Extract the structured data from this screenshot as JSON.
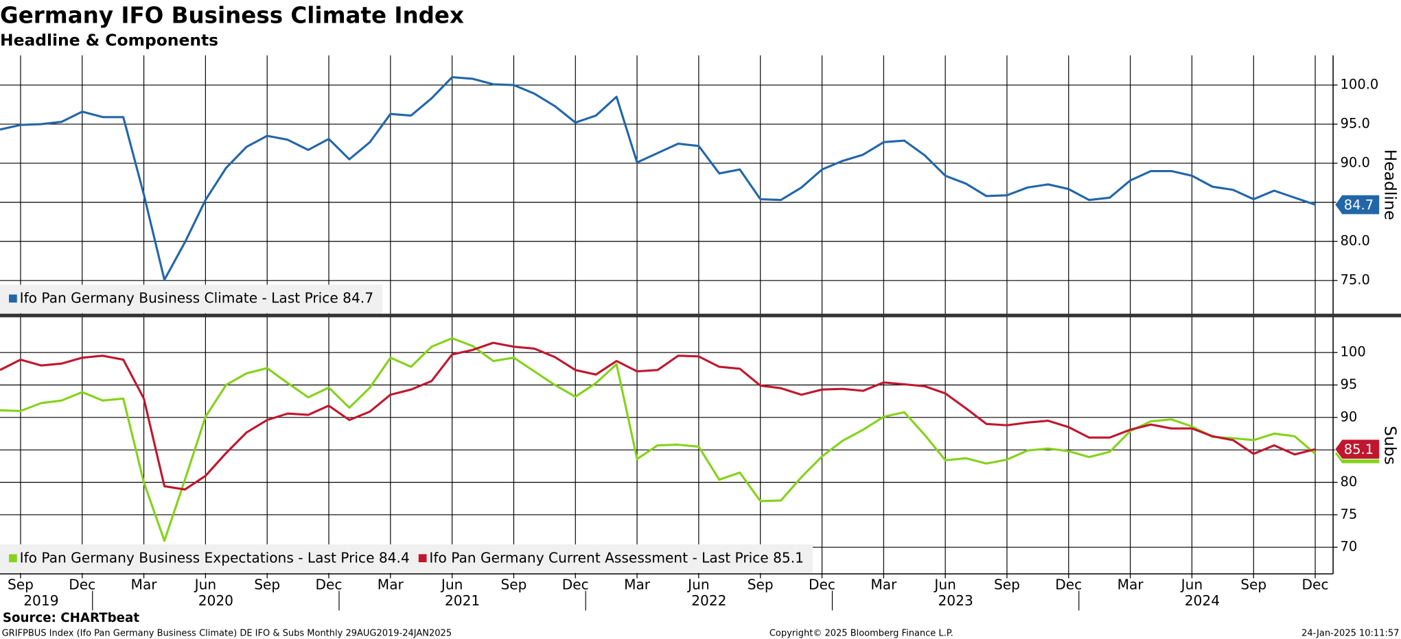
{
  "title": "Germany IFO Business Climate Index",
  "subtitle": "Headline & Components",
  "source": "Source: CHARTbeat",
  "footer_left": "GRIFPBUS Index (Ifo Pan Germany Business Climate) DE IFO & Subs  Monthly 29AUG2019-24JAN2025",
  "footer_center": "Copyright© 2025 Bloomberg Finance L.P.",
  "footer_right": "24-Jan-2025 10:11:57",
  "chart_data": [
    {
      "type": "line",
      "axis_label": "Headline",
      "grid": true,
      "axis_side": "right",
      "x": [
        "2019-08",
        "2019-09",
        "2019-10",
        "2019-11",
        "2019-12",
        "2020-01",
        "2020-02",
        "2020-03",
        "2020-04",
        "2020-05",
        "2020-06",
        "2020-07",
        "2020-08",
        "2020-09",
        "2020-10",
        "2020-11",
        "2020-12",
        "2021-01",
        "2021-02",
        "2021-03",
        "2021-04",
        "2021-05",
        "2021-06",
        "2021-07",
        "2021-08",
        "2021-09",
        "2021-10",
        "2021-11",
        "2021-12",
        "2022-01",
        "2022-02",
        "2022-03",
        "2022-04",
        "2022-05",
        "2022-06",
        "2022-07",
        "2022-08",
        "2022-09",
        "2022-10",
        "2022-11",
        "2022-12",
        "2023-01",
        "2023-02",
        "2023-03",
        "2023-04",
        "2023-05",
        "2023-06",
        "2023-07",
        "2023-08",
        "2023-09",
        "2023-10",
        "2023-11",
        "2023-12",
        "2024-01",
        "2024-02",
        "2024-03",
        "2024-04",
        "2024-05",
        "2024-06",
        "2024-07",
        "2024-08",
        "2024-09",
        "2024-10",
        "2024-11",
        "2024-12"
      ],
      "series": [
        {
          "name": "Ifo Pan Germany Business Climate - Last Price 84.7",
          "color": "#2266a8",
          "values": [
            94.3,
            94.9,
            95.0,
            95.3,
            96.6,
            95.9,
            95.9,
            86.0,
            75.1,
            79.9,
            85.3,
            89.4,
            92.1,
            93.5,
            93.0,
            91.7,
            93.1,
            90.5,
            92.7,
            96.3,
            96.1,
            98.3,
            101.0,
            100.8,
            100.1,
            100.0,
            98.9,
            97.3,
            95.2,
            96.1,
            98.5,
            90.1,
            91.3,
            92.5,
            92.2,
            88.7,
            89.2,
            85.4,
            85.3,
            86.9,
            89.2,
            90.3,
            91.1,
            92.7,
            92.9,
            91.0,
            88.4,
            87.4,
            85.8,
            85.9,
            86.9,
            87.3,
            86.7,
            85.3,
            85.6,
            87.8,
            89.0,
            89.0,
            88.4,
            87.0,
            86.6,
            85.4,
            86.5,
            85.6,
            84.7
          ]
        }
      ],
      "ylim": [
        70.7,
        103.8
      ],
      "yticks": [
        {
          "value": 75,
          "label": "75.0"
        },
        {
          "value": 80,
          "label": "80.0"
        },
        {
          "value": 85,
          "label": "85.0"
        },
        {
          "value": 90,
          "label": "90.0"
        },
        {
          "value": 95,
          "label": "95.0"
        },
        {
          "value": 100,
          "label": "100.0"
        }
      ]
    },
    {
      "type": "line",
      "axis_label": "Subs",
      "grid": true,
      "axis_side": "right",
      "x": [
        "2019-08",
        "2019-09",
        "2019-10",
        "2019-11",
        "2019-12",
        "2020-01",
        "2020-02",
        "2020-03",
        "2020-04",
        "2020-05",
        "2020-06",
        "2020-07",
        "2020-08",
        "2020-09",
        "2020-10",
        "2020-11",
        "2020-12",
        "2021-01",
        "2021-02",
        "2021-03",
        "2021-04",
        "2021-05",
        "2021-06",
        "2021-07",
        "2021-08",
        "2021-09",
        "2021-10",
        "2021-11",
        "2021-12",
        "2022-01",
        "2022-02",
        "2022-03",
        "2022-04",
        "2022-05",
        "2022-06",
        "2022-07",
        "2022-08",
        "2022-09",
        "2022-10",
        "2022-11",
        "2022-12",
        "2023-01",
        "2023-02",
        "2023-03",
        "2023-04",
        "2023-05",
        "2023-06",
        "2023-07",
        "2023-08",
        "2023-09",
        "2023-10",
        "2023-11",
        "2023-12",
        "2024-01",
        "2024-02",
        "2024-03",
        "2024-04",
        "2024-05",
        "2024-06",
        "2024-07",
        "2024-08",
        "2024-09",
        "2024-10",
        "2024-11",
        "2024-12"
      ],
      "series": [
        {
          "name": "Ifo Pan Germany Business Expectations - Last Price 84.4",
          "color": "#84d21a",
          "values": [
            91.1,
            91.0,
            92.2,
            92.6,
            93.9,
            92.6,
            92.9,
            80.0,
            71.0,
            80.4,
            90.1,
            95.0,
            96.8,
            97.6,
            95.3,
            93.1,
            94.6,
            91.5,
            94.6,
            99.2,
            97.8,
            100.9,
            102.2,
            101.0,
            98.7,
            99.2,
            97.1,
            95.0,
            93.2,
            95.3,
            98.2,
            83.6,
            85.7,
            85.8,
            85.5,
            80.4,
            81.5,
            77.1,
            77.2,
            80.8,
            84.0,
            86.4,
            88.1,
            90.1,
            90.8,
            87.3,
            83.4,
            83.7,
            82.9,
            83.5,
            84.9,
            85.2,
            84.8,
            83.9,
            84.7,
            87.9,
            89.4,
            89.7,
            88.6,
            87.0,
            86.8,
            86.5,
            87.5,
            87.1,
            84.4
          ]
        },
        {
          "name": "Ifo Pan Germany Current Assessment - Last Price 85.1",
          "color": "#c0162e",
          "values": [
            97.3,
            98.9,
            98.0,
            98.3,
            99.2,
            99.5,
            98.9,
            92.9,
            79.4,
            78.9,
            81.0,
            84.5,
            87.7,
            89.6,
            90.6,
            90.4,
            91.8,
            89.6,
            90.9,
            93.5,
            94.3,
            95.6,
            99.7,
            100.4,
            101.5,
            100.9,
            100.6,
            99.3,
            97.3,
            96.6,
            98.7,
            97.1,
            97.3,
            99.5,
            99.4,
            97.8,
            97.5,
            94.9,
            94.5,
            93.5,
            94.3,
            94.4,
            94.1,
            95.4,
            95.1,
            94.8,
            93.7,
            91.4,
            89.0,
            88.8,
            89.2,
            89.5,
            88.5,
            86.9,
            86.9,
            88.1,
            88.9,
            88.3,
            88.3,
            87.1,
            86.5,
            84.4,
            85.7,
            84.3,
            85.1
          ]
        }
      ],
      "ylim": [
        65.9,
        105.5
      ],
      "yticks": [
        70,
        75,
        80,
        85,
        90,
        95,
        100
      ],
      "xticks": [
        {
          "value": "2019-09",
          "label": "Sep"
        },
        {
          "value": "2019-12",
          "label": "Dec"
        },
        {
          "value": "2020-03",
          "label": "Mar"
        },
        {
          "value": "2020-06",
          "label": "Jun"
        },
        {
          "value": "2020-09",
          "label": "Sep"
        },
        {
          "value": "2020-12",
          "label": "Dec"
        },
        {
          "value": "2021-03",
          "label": "Mar"
        },
        {
          "value": "2021-06",
          "label": "Jun"
        },
        {
          "value": "2021-09",
          "label": "Sep"
        },
        {
          "value": "2021-12",
          "label": "Dec"
        },
        {
          "value": "2022-03",
          "label": "Mar"
        },
        {
          "value": "2022-06",
          "label": "Jun"
        },
        {
          "value": "2022-09",
          "label": "Sep"
        },
        {
          "value": "2022-12",
          "label": "Dec"
        },
        {
          "value": "2023-03",
          "label": "Mar"
        },
        {
          "value": "2023-06",
          "label": "Jun"
        },
        {
          "value": "2023-09",
          "label": "Sep"
        },
        {
          "value": "2023-12",
          "label": "Dec"
        },
        {
          "value": "2024-03",
          "label": "Mar"
        },
        {
          "value": "2024-06",
          "label": "Jun"
        },
        {
          "value": "2024-09",
          "label": "Sep"
        },
        {
          "value": "2024-12",
          "label": "Dec"
        }
      ],
      "years": [
        "2019",
        "2020",
        "2021",
        "2022",
        "2023",
        "2024"
      ]
    }
  ]
}
